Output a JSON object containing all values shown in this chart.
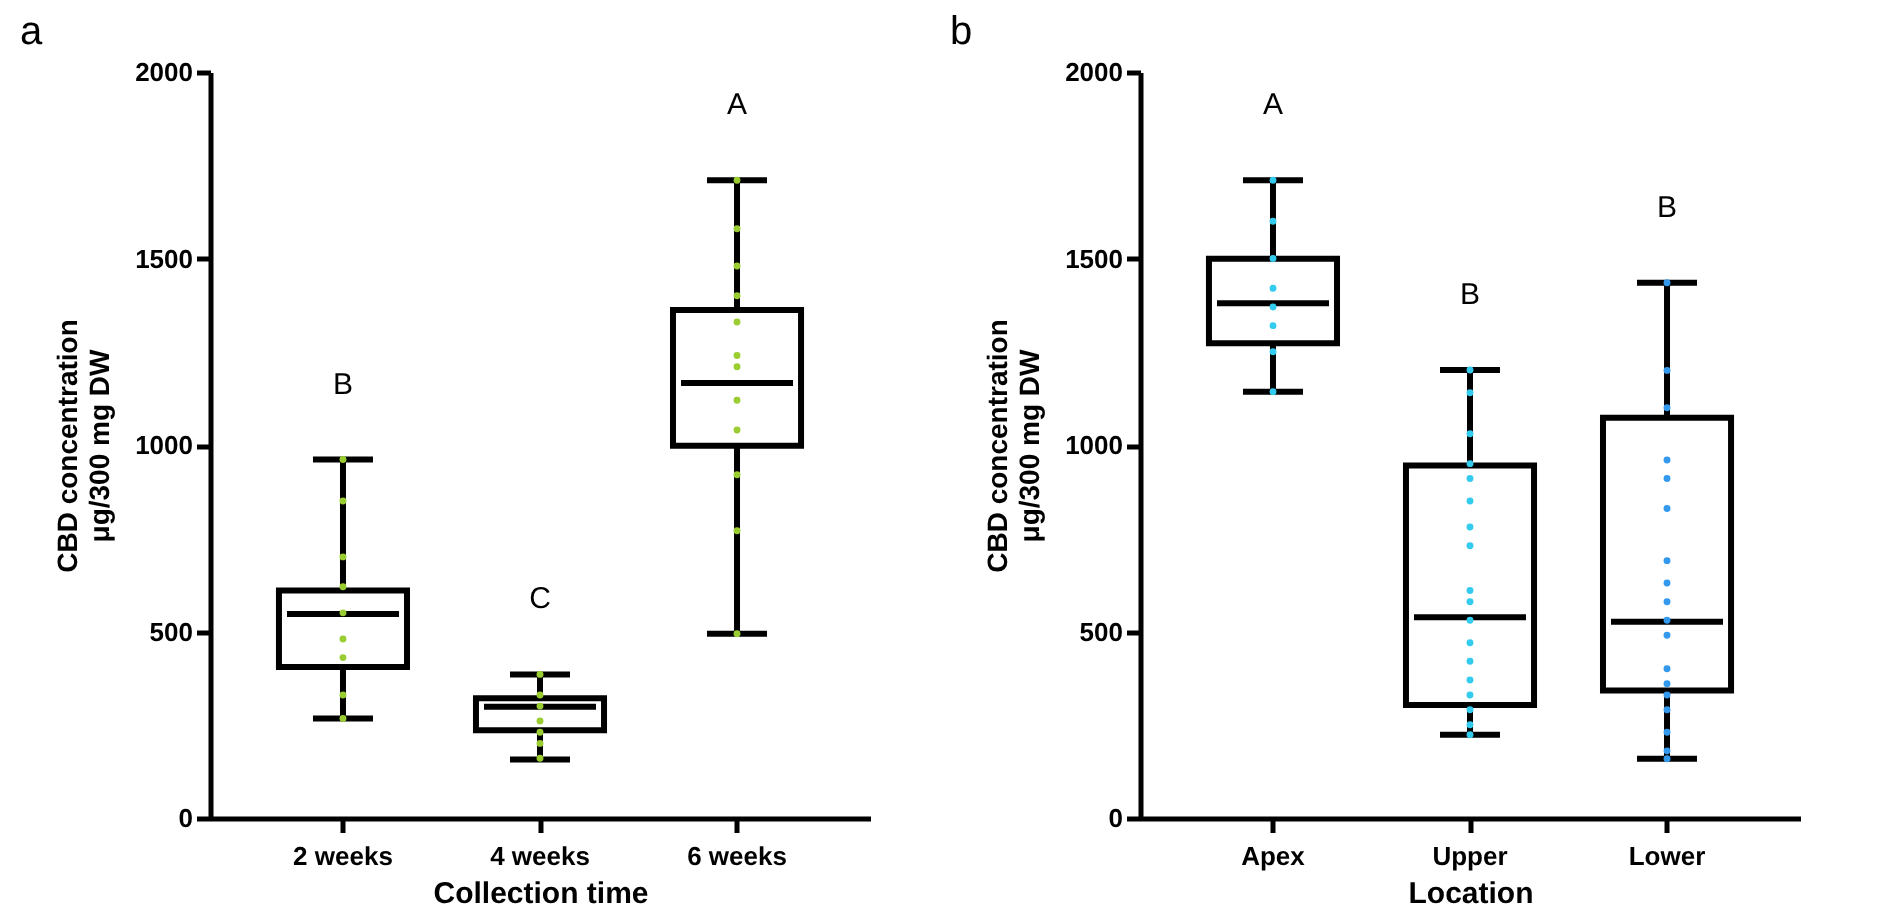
{
  "chart_data": [
    {
      "type": "box",
      "title": "a",
      "xlabel": "Collection time",
      "ylabel": "CBD concentration\nμg/300 mg DW",
      "categories": [
        "2 weeks",
        "4 weeks",
        "6 weeks"
      ],
      "ylim": [
        0,
        2000
      ],
      "yticks": [
        0,
        500,
        1000,
        1500,
        2000
      ],
      "boxes": [
        {
          "low": 267,
          "q1": 405,
          "median": 547,
          "q3": 610,
          "high": 961
        },
        {
          "low": 157,
          "q1": 235,
          "median": 298,
          "q3": 321,
          "high": 385
        },
        {
          "low": 494,
          "q1": 998,
          "median": 1166,
          "q3": 1362,
          "high": 1710
        }
      ],
      "series": [
        {
          "type": "scatter",
          "color": "#9acd32",
          "x": [
            "2 weeks",
            "2 weeks",
            "2 weeks",
            "2 weeks",
            "2 weeks",
            "2 weeks",
            "2 weeks",
            "2 weeks",
            "2 weeks",
            "4 weeks",
            "4 weeks",
            "4 weeks",
            "4 weeks",
            "4 weeks",
            "4 weeks",
            "4 weeks",
            "6 weeks",
            "6 weeks",
            "6 weeks",
            "6 weeks",
            "6 weeks",
            "6 weeks",
            "6 weeks",
            "6 weeks",
            "6 weeks",
            "6 weeks",
            "6 weeks",
            "6 weeks"
          ],
          "values": [
            961,
            850,
            700,
            620,
            550,
            480,
            430,
            330,
            267,
            385,
            330,
            300,
            260,
            230,
            200,
            160,
            1710,
            1580,
            1480,
            1400,
            1330,
            1240,
            1210,
            1120,
            1040,
            920,
            770,
            494
          ]
        }
      ],
      "annotations": [
        "B",
        "C",
        "A"
      ]
    },
    {
      "type": "box",
      "title": "b",
      "xlabel": "Location",
      "ylabel": "CBD concentration\nμg/300 mg DW",
      "categories": [
        "Apex",
        "Upper",
        "Lower"
      ],
      "ylim": [
        0,
        2000
      ],
      "yticks": [
        0,
        500,
        1000,
        1500,
        2000
      ],
      "boxes": [
        {
          "low": 1143,
          "q1": 1273,
          "median": 1380,
          "q3": 1499,
          "high": 1710
        },
        {
          "low": 223,
          "q1": 303,
          "median": 538,
          "q3": 945,
          "high": 1201
        },
        {
          "low": 159,
          "q1": 342,
          "median": 526,
          "q3": 1073,
          "high": 1435
        }
      ],
      "series": [
        {
          "type": "scatter",
          "color": "#33ccee",
          "x": [
            "Apex",
            "Apex",
            "Apex",
            "Apex",
            "Apex",
            "Apex",
            "Apex",
            "Apex",
            "Upper",
            "Upper",
            "Upper",
            "Upper",
            "Upper",
            "Upper",
            "Upper",
            "Upper",
            "Upper",
            "Upper",
            "Upper",
            "Upper",
            "Upper",
            "Upper",
            "Upper",
            "Upper",
            "Upper",
            "Upper"
          ],
          "values": [
            1710,
            1600,
            1500,
            1420,
            1370,
            1320,
            1250,
            1143,
            1201,
            1140,
            1030,
            950,
            910,
            850,
            780,
            730,
            610,
            580,
            530,
            470,
            420,
            370,
            330,
            290,
            250,
            223
          ]
        },
        {
          "type": "scatter",
          "color": "#3399ee",
          "x": [
            "Lower",
            "Lower",
            "Lower",
            "Lower",
            "Lower",
            "Lower",
            "Lower",
            "Lower",
            "Lower",
            "Lower",
            "Lower",
            "Lower",
            "Lower",
            "Lower",
            "Lower",
            "Lower",
            "Lower",
            "Lower"
          ],
          "values": [
            1435,
            1200,
            1100,
            960,
            910,
            830,
            690,
            630,
            580,
            530,
            490,
            400,
            360,
            330,
            290,
            230,
            180,
            159
          ]
        }
      ],
      "annotations": [
        "A",
        "B",
        "B"
      ]
    }
  ]
}
